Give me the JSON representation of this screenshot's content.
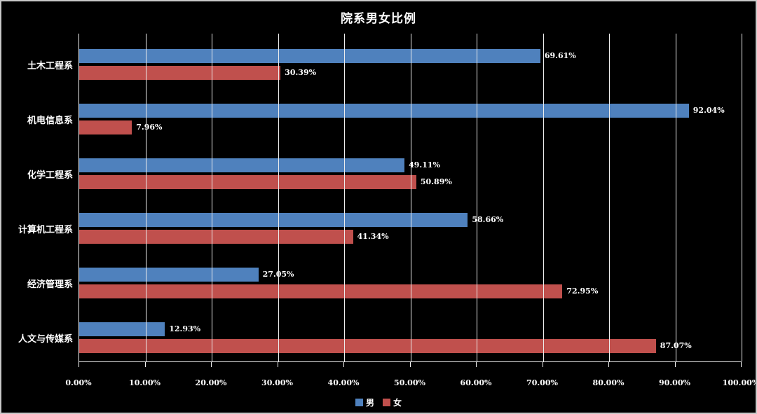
{
  "title": "院系男女比例",
  "colors": {
    "male": "#4F81BD",
    "female": "#C0504D",
    "background": "#000000",
    "text": "#FFFFFF",
    "gridline": "#EDEDED"
  },
  "legend": {
    "male_label": "男",
    "female_label": "女"
  },
  "chart_data": {
    "type": "bar",
    "orientation": "horizontal",
    "title": "院系男女比例",
    "categories": [
      "土木工程系",
      "机电信息系",
      "化学工程系",
      "计算机工程系",
      "经济管理系",
      "人文与传媒系"
    ],
    "series": [
      {
        "name": "男",
        "color": "#4F81BD",
        "values": [
          69.61,
          92.04,
          49.11,
          58.66,
          27.05,
          12.93
        ],
        "labels": [
          "69.61%",
          "92.04%",
          "49.11%",
          "58.66%",
          "27.05%",
          "12.93%"
        ]
      },
      {
        "name": "女",
        "color": "#C0504D",
        "values": [
          30.39,
          7.96,
          50.89,
          41.34,
          72.95,
          87.07
        ],
        "labels": [
          "30.39%",
          "7.96%",
          "50.89%",
          "41.34%",
          "72.95%",
          "87.07%"
        ]
      }
    ],
    "x_axis": {
      "min": 0,
      "max": 100,
      "tick_step": 10,
      "ticks": [
        "0.00%",
        "10.00%",
        "20.00%",
        "30.00%",
        "40.00%",
        "50.00%",
        "60.00%",
        "70.00%",
        "80.00%",
        "90.00%",
        "100.00%"
      ]
    },
    "grid": true,
    "legend_position": "bottom"
  }
}
